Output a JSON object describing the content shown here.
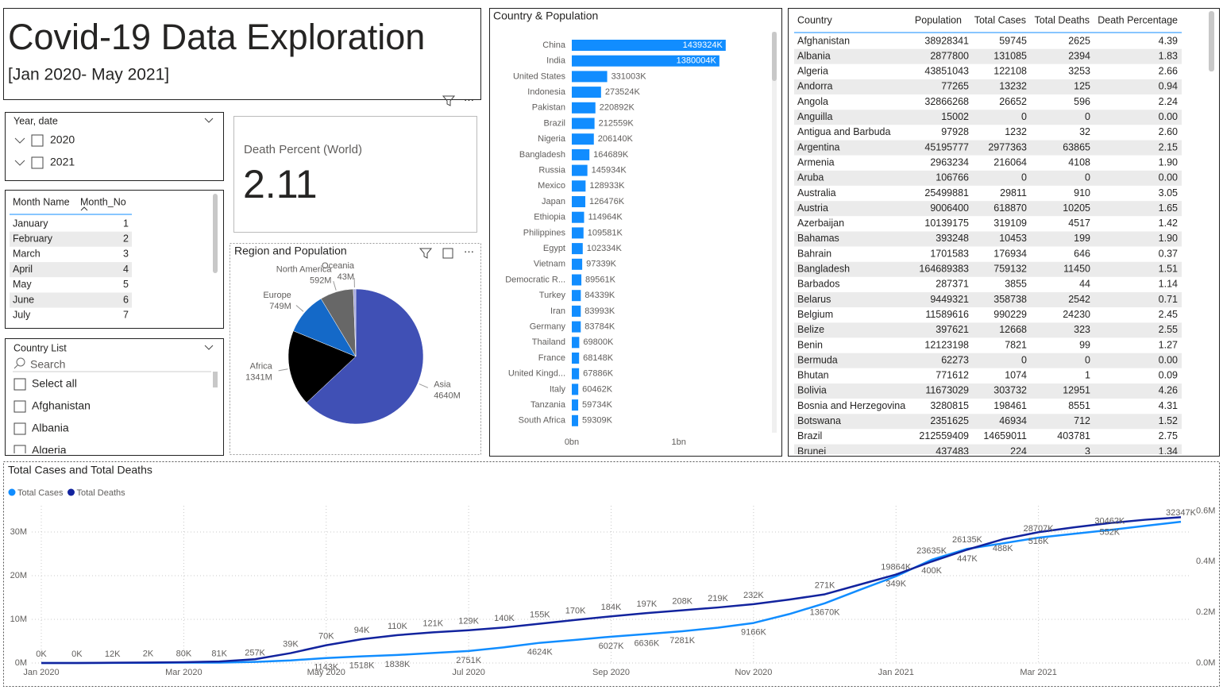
{
  "header": {
    "title": "Covid-19 Data Exploration",
    "subtitle": "[Jan 2020- May 2021]"
  },
  "year_slicer": {
    "title": "Year, date",
    "items": [
      "2020",
      "2021"
    ]
  },
  "month_table": {
    "columns": [
      "Month Name",
      "Month_No"
    ],
    "rows": [
      [
        "January",
        1
      ],
      [
        "February",
        2
      ],
      [
        "March",
        3
      ],
      [
        "April",
        4
      ],
      [
        "May",
        5
      ],
      [
        "June",
        6
      ],
      [
        "July",
        7
      ]
    ]
  },
  "country_list": {
    "title": "Country List",
    "search": "Search",
    "items": [
      "Select all",
      "Afghanistan",
      "Albania",
      "Algeria"
    ]
  },
  "kpi": {
    "label": "Death Percent (World)",
    "value": 2.11
  },
  "country_table": {
    "columns": [
      "Country",
      "Population",
      "Total Cases",
      "Total Deaths",
      "Death Percentage"
    ],
    "rows": [
      [
        "Afghanistan",
        "38928341",
        "59745",
        "2625",
        "4.39"
      ],
      [
        "Albania",
        "2877800",
        "131085",
        "2394",
        "1.83"
      ],
      [
        "Algeria",
        "43851043",
        "122108",
        "3253",
        "2.66"
      ],
      [
        "Andorra",
        "77265",
        "13232",
        "125",
        "0.94"
      ],
      [
        "Angola",
        "32866268",
        "26652",
        "596",
        "2.24"
      ],
      [
        "Anguilla",
        "15002",
        "0",
        "0",
        "0.00"
      ],
      [
        "Antigua and Barbuda",
        "97928",
        "1232",
        "32",
        "2.60"
      ],
      [
        "Argentina",
        "45195777",
        "2977363",
        "63865",
        "2.15"
      ],
      [
        "Armenia",
        "2963234",
        "216064",
        "4108",
        "1.90"
      ],
      [
        "Aruba",
        "106766",
        "0",
        "0",
        "0.00"
      ],
      [
        "Australia",
        "25499881",
        "29811",
        "910",
        "3.05"
      ],
      [
        "Austria",
        "9006400",
        "618870",
        "10205",
        "1.65"
      ],
      [
        "Azerbaijan",
        "10139175",
        "319109",
        "4517",
        "1.42"
      ],
      [
        "Bahamas",
        "393248",
        "10453",
        "199",
        "1.90"
      ],
      [
        "Bahrain",
        "1701583",
        "176934",
        "646",
        "0.37"
      ],
      [
        "Bangladesh",
        "164689383",
        "759132",
        "11450",
        "1.51"
      ],
      [
        "Barbados",
        "287371",
        "3855",
        "44",
        "1.14"
      ],
      [
        "Belarus",
        "9449321",
        "358738",
        "2542",
        "0.71"
      ],
      [
        "Belgium",
        "11589616",
        "990229",
        "24230",
        "2.45"
      ],
      [
        "Belize",
        "397621",
        "12668",
        "323",
        "2.55"
      ],
      [
        "Benin",
        "12123198",
        "7821",
        "99",
        "1.27"
      ],
      [
        "Bermuda",
        "62273",
        "0",
        "0",
        "0.00"
      ],
      [
        "Bhutan",
        "771612",
        "1074",
        "1",
        "0.09"
      ],
      [
        "Bolivia",
        "11673029",
        "303732",
        "12951",
        "4.26"
      ],
      [
        "Bosnia and Herzegovina",
        "3280815",
        "198461",
        "8551",
        "4.31"
      ],
      [
        "Botswana",
        "2351625",
        "46934",
        "712",
        "1.52"
      ],
      [
        "Brazil",
        "212559409",
        "14659011",
        "403781",
        "2.75"
      ],
      [
        "Brunei",
        "437483",
        "224",
        "3",
        "1.34"
      ]
    ]
  },
  "chart_data": [
    {
      "type": "bar",
      "orientation": "horizontal",
      "title": "Country & Population",
      "categories": [
        "China",
        "India",
        "United States",
        "Indonesia",
        "Pakistan",
        "Brazil",
        "Nigeria",
        "Bangladesh",
        "Russia",
        "Mexico",
        "Japan",
        "Ethiopia",
        "Philippines",
        "Egypt",
        "Vietnam",
        "Democratic R...",
        "Turkey",
        "Iran",
        "Germany",
        "Thailand",
        "France",
        "United Kingd...",
        "Italy",
        "Tanzania",
        "South Africa"
      ],
      "values": [
        1439324,
        1380004,
        331003,
        273524,
        220892,
        212559,
        206140,
        164689,
        145934,
        128933,
        126476,
        114964,
        109581,
        102334,
        97339,
        89561,
        84339,
        83993,
        83784,
        69800,
        68148,
        67886,
        60462,
        59734,
        59309
      ],
      "value_labels": [
        "1439324K",
        "1380004K",
        "331003K",
        "273524K",
        "220892K",
        "212559K",
        "206140K",
        "164689K",
        "145934K",
        "128933K",
        "126476K",
        "114964K",
        "109581K",
        "102334K",
        "97339K",
        "89561K",
        "84339K",
        "83993K",
        "83784K",
        "69800K",
        "68148K",
        "67886K",
        "60462K",
        "59734K",
        "59309K"
      ],
      "color": "#118dff",
      "xlim": [
        0,
        1500000
      ],
      "xticks": [
        {
          "value": 0,
          "label": "0bn"
        },
        {
          "value": 1000000,
          "label": "1bn"
        }
      ]
    },
    {
      "type": "pie",
      "title": "Region and Population",
      "categories": [
        "Asia",
        "Africa",
        "Europe",
        "North America",
        "Oceania"
      ],
      "values": [
        4640,
        1341,
        749,
        592,
        43
      ],
      "value_labels": [
        "4640M",
        "1341M",
        "749M",
        "592M",
        "43M"
      ],
      "colors": [
        "#4050b5",
        "#000000",
        "#1469c8",
        "#676767",
        "#a4a6dc"
      ]
    },
    {
      "type": "line",
      "title": "Total Cases and Total Deaths",
      "x": [
        0,
        0.5,
        1,
        1.5,
        2,
        2.5,
        3,
        3.5,
        4,
        4.5,
        5,
        5.5,
        6,
        6.5,
        7,
        7.5,
        8,
        8.5,
        9,
        9.5,
        10,
        10.5,
        11,
        11.5,
        12,
        12.5,
        13,
        13.5,
        14,
        14.5,
        15,
        15.5,
        16
      ],
      "xlim": [
        0,
        16
      ],
      "xticks": [
        {
          "value": 0,
          "label": "Jan 2020"
        },
        {
          "value": 2,
          "label": "Mar 2020"
        },
        {
          "value": 4,
          "label": "May 2020"
        },
        {
          "value": 6,
          "label": "Jul 2020"
        },
        {
          "value": 8,
          "label": "Sep 2020"
        },
        {
          "value": 10,
          "label": "Nov 2020"
        },
        {
          "value": 12,
          "label": "Jan 2021"
        },
        {
          "value": 14,
          "label": "Mar 2021"
        }
      ],
      "ylim": [
        0,
        36
      ],
      "yticks": [
        {
          "value": 0,
          "label": "0M"
        },
        {
          "value": 10,
          "label": "10M"
        },
        {
          "value": 20,
          "label": "20M"
        },
        {
          "value": 30,
          "label": "30M"
        }
      ],
      "y2lim": [
        0,
        0.62
      ],
      "y2ticks": [
        {
          "value": 0,
          "label": "0.0M"
        },
        {
          "value": 0.2,
          "label": "0.2M"
        },
        {
          "value": 0.4,
          "label": "0.4M"
        },
        {
          "value": 0.6,
          "label": "0.6M"
        }
      ],
      "grid": true,
      "legend": "top-left",
      "series": [
        {
          "name": "Total Cases",
          "color": "#118dff",
          "values": [
            0,
            0.001,
            0.012,
            0.045,
            0.08,
            0.081,
            0.257,
            0.6,
            1.143,
            1.518,
            1.838,
            2.3,
            2.751,
            3.6,
            4.624,
            5.3,
            6.027,
            6.636,
            7.281,
            8.1,
            9.166,
            11.2,
            13.67,
            16.8,
            19.864,
            23.635,
            26.135,
            27.4,
            28.707,
            29.6,
            30.462,
            31.4,
            32.347
          ],
          "value_labels": [
            "0K",
            null,
            "12K",
            null,
            "80K",
            "81K",
            "257K",
            null,
            "1143K",
            "1518K",
            "1838K",
            null,
            "2751K",
            null,
            "4624K",
            null,
            "6027K",
            "6636K",
            "7281K",
            null,
            "9166K",
            null,
            "13670K",
            null,
            "19864K",
            "23635K",
            "26135K",
            null,
            "28707K",
            null,
            "30462K",
            null,
            "32347K"
          ]
        },
        {
          "name": "Total Deaths",
          "color": "#12239e",
          "axis": "y2",
          "values": [
            0,
            0,
            0.001,
            0.002,
            0.003,
            0.006,
            0.015,
            0.039,
            0.07,
            0.094,
            0.11,
            0.121,
            0.129,
            0.14,
            0.155,
            0.17,
            0.184,
            0.197,
            0.208,
            0.219,
            0.232,
            0.25,
            0.271,
            0.31,
            0.349,
            0.4,
            0.447,
            0.488,
            0.516,
            0.535,
            0.552,
            0.565,
            0.575
          ],
          "value_labels": [
            null,
            "0K",
            null,
            "2K",
            null,
            null,
            null,
            "39K",
            "70K",
            "94K",
            "110K",
            "121K",
            "129K",
            "140K",
            "155K",
            "170K",
            "184K",
            "197K",
            "208K",
            "219K",
            "232K",
            null,
            "271K",
            null,
            "349K",
            "400K",
            "447K",
            "488K",
            "516K",
            null,
            "552K",
            null,
            null
          ]
        }
      ]
    }
  ]
}
